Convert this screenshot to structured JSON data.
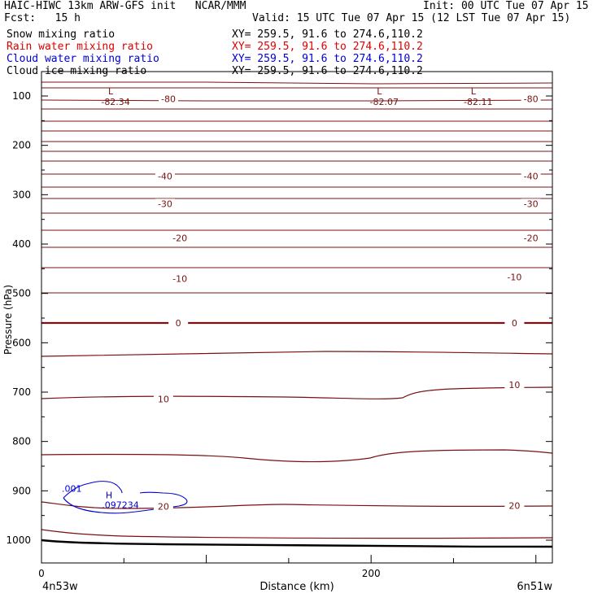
{
  "header": {
    "title_left": "HAIC-HIWC 13km ARW-GFS init   NCAR/MMM",
    "init": "Init: 00 UTC Tue 07 Apr 15",
    "fcst": "Fcst:   15 h",
    "valid": "Valid: 15 UTC Tue 07 Apr 15 (12 LST Tue 07 Apr 15)"
  },
  "legend": [
    {
      "name": "Snow mixing ratio",
      "xy": "XY= 259.5, 91.6 to 274.6,110.2",
      "color": "#000000"
    },
    {
      "name": "Rain water mixing ratio",
      "xy": "XY= 259.5, 91.6 to 274.6,110.2",
      "color": "#e00000"
    },
    {
      "name": "Cloud water mixing ratio",
      "xy": "XY= 259.5, 91.6 to 274.6,110.2",
      "color": "#0000d0"
    },
    {
      "name": "Cloud ice mixing ratio",
      "xy": "XY= 259.5, 91.6 to 274.6,110.2",
      "color": "#000000"
    }
  ],
  "chart_data": {
    "type": "line",
    "ylabel": "Pressure (hPa)",
    "xlabel": "Distance (km)",
    "y_ticks": [
      "100",
      "200",
      "300",
      "400",
      "500",
      "600",
      "700",
      "800",
      "900",
      "1000"
    ],
    "x_ticks": [
      "0",
      "200"
    ],
    "ylim": [
      1050,
      50
    ],
    "xlim": [
      0,
      310
    ],
    "endpoint_left": "4n53w",
    "endpoint_right": "6n51w",
    "colors": {
      "temperature": "#7a1010",
      "cloud_water": "#0000d0",
      "terrain": "#000000"
    },
    "isotherm_labels": [
      {
        "text": "-80",
        "x": 77,
        "p": 106
      },
      {
        "text": "-80",
        "x": 297,
        "p": 106
      },
      {
        "text": "-40",
        "x": 75,
        "p": 262
      },
      {
        "text": "-40",
        "x": 297,
        "p": 262
      },
      {
        "text": "-30",
        "x": 75,
        "p": 318
      },
      {
        "text": "-30",
        "x": 297,
        "p": 318
      },
      {
        "text": "-20",
        "x": 84,
        "p": 388
      },
      {
        "text": "-20",
        "x": 297,
        "p": 388
      },
      {
        "text": "-10",
        "x": 84,
        "p": 470
      },
      {
        "text": "-10",
        "x": 287,
        "p": 467
      },
      {
        "text": "0",
        "x": 83,
        "p": 560
      },
      {
        "text": "0",
        "x": 287,
        "p": 560
      },
      {
        "text": "10",
        "x": 74,
        "p": 714
      },
      {
        "text": "10",
        "x": 287,
        "p": 685
      },
      {
        "text": "20",
        "x": 74,
        "p": 932
      },
      {
        "text": "20",
        "x": 287,
        "p": 930
      }
    ],
    "extrema": [
      {
        "text": "L",
        "value": "-82.34",
        "x": 42,
        "p": 98
      },
      {
        "text": "L",
        "value": "-82.07",
        "x": 205,
        "p": 98
      },
      {
        "text": "L",
        "value": "-82.11",
        "x": 262,
        "p": 98
      }
    ],
    "cloud_water": {
      "label": ".001",
      "max_label": "H",
      "max_value": ".097234",
      "x": 40,
      "p": 918
    }
  }
}
